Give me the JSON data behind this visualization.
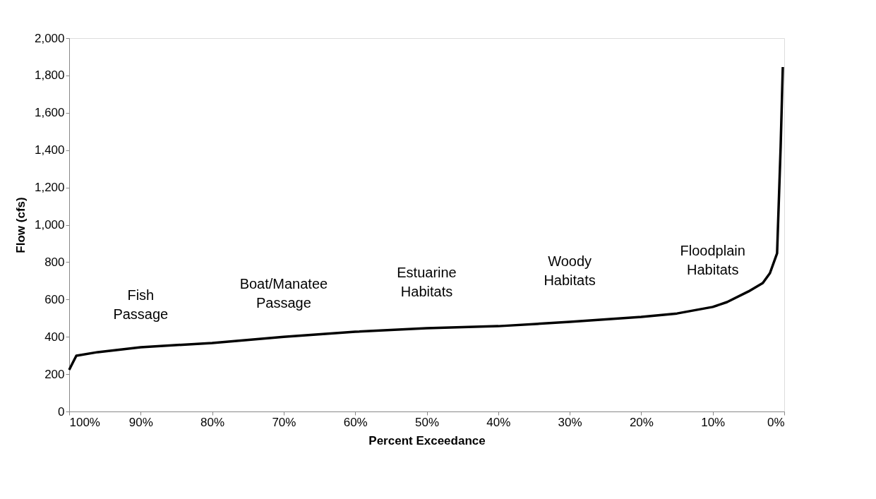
{
  "chart_data": {
    "type": "line",
    "xlabel": "Percent Exceedance",
    "ylabel": "Flow (cfs)",
    "x": [
      100,
      99,
      96,
      90,
      80,
      70,
      60,
      50,
      40,
      30,
      20,
      15,
      10,
      8,
      5,
      3,
      2,
      1,
      0.5,
      0.2
    ],
    "series": [
      {
        "color": "#000000",
        "values": [
          223,
          299,
          318,
          344,
          367,
          400,
          427,
          446,
          457,
          480,
          507,
          525,
          560,
          586,
          643,
          688,
          741,
          847,
          1420,
          1845
        ]
      }
    ],
    "xlim": [
      100,
      0
    ],
    "ylim": [
      0,
      2000
    ],
    "xticks": [
      {
        "value": 100,
        "label": "100%"
      },
      {
        "value": 90,
        "label": "90%"
      },
      {
        "value": 80,
        "label": "80%"
      },
      {
        "value": 70,
        "label": "70%"
      },
      {
        "value": 60,
        "label": "60%"
      },
      {
        "value": 50,
        "label": "50%"
      },
      {
        "value": 40,
        "label": "40%"
      },
      {
        "value": 30,
        "label": "30%"
      },
      {
        "value": 20,
        "label": "20%"
      },
      {
        "value": 10,
        "label": "10%"
      },
      {
        "value": 0,
        "label": "0%"
      }
    ],
    "yticks": [
      0,
      {
        "value": 200,
        "label": "200"
      },
      {
        "value": 400,
        "label": "400"
      },
      {
        "value": 600,
        "label": "600"
      },
      {
        "value": 800,
        "label": "800"
      },
      {
        "value": 1000,
        "label": "1,000"
      },
      {
        "value": 1200,
        "label": "1,200"
      },
      {
        "value": 1400,
        "label": "1,400"
      },
      {
        "value": 1600,
        "label": "1,600"
      },
      {
        "value": 1800,
        "label": "1,800"
      },
      {
        "value": 2000,
        "label": "2,000"
      }
    ],
    "annotations": [
      "Fish\nPassage",
      "Boat/Manatee\nPassage",
      "Estuarine\nHabitats",
      "Woody\nHabitats",
      "Floodplain\nHabitats"
    ],
    "grid": false,
    "marker": "none",
    "line_style": "solid"
  }
}
